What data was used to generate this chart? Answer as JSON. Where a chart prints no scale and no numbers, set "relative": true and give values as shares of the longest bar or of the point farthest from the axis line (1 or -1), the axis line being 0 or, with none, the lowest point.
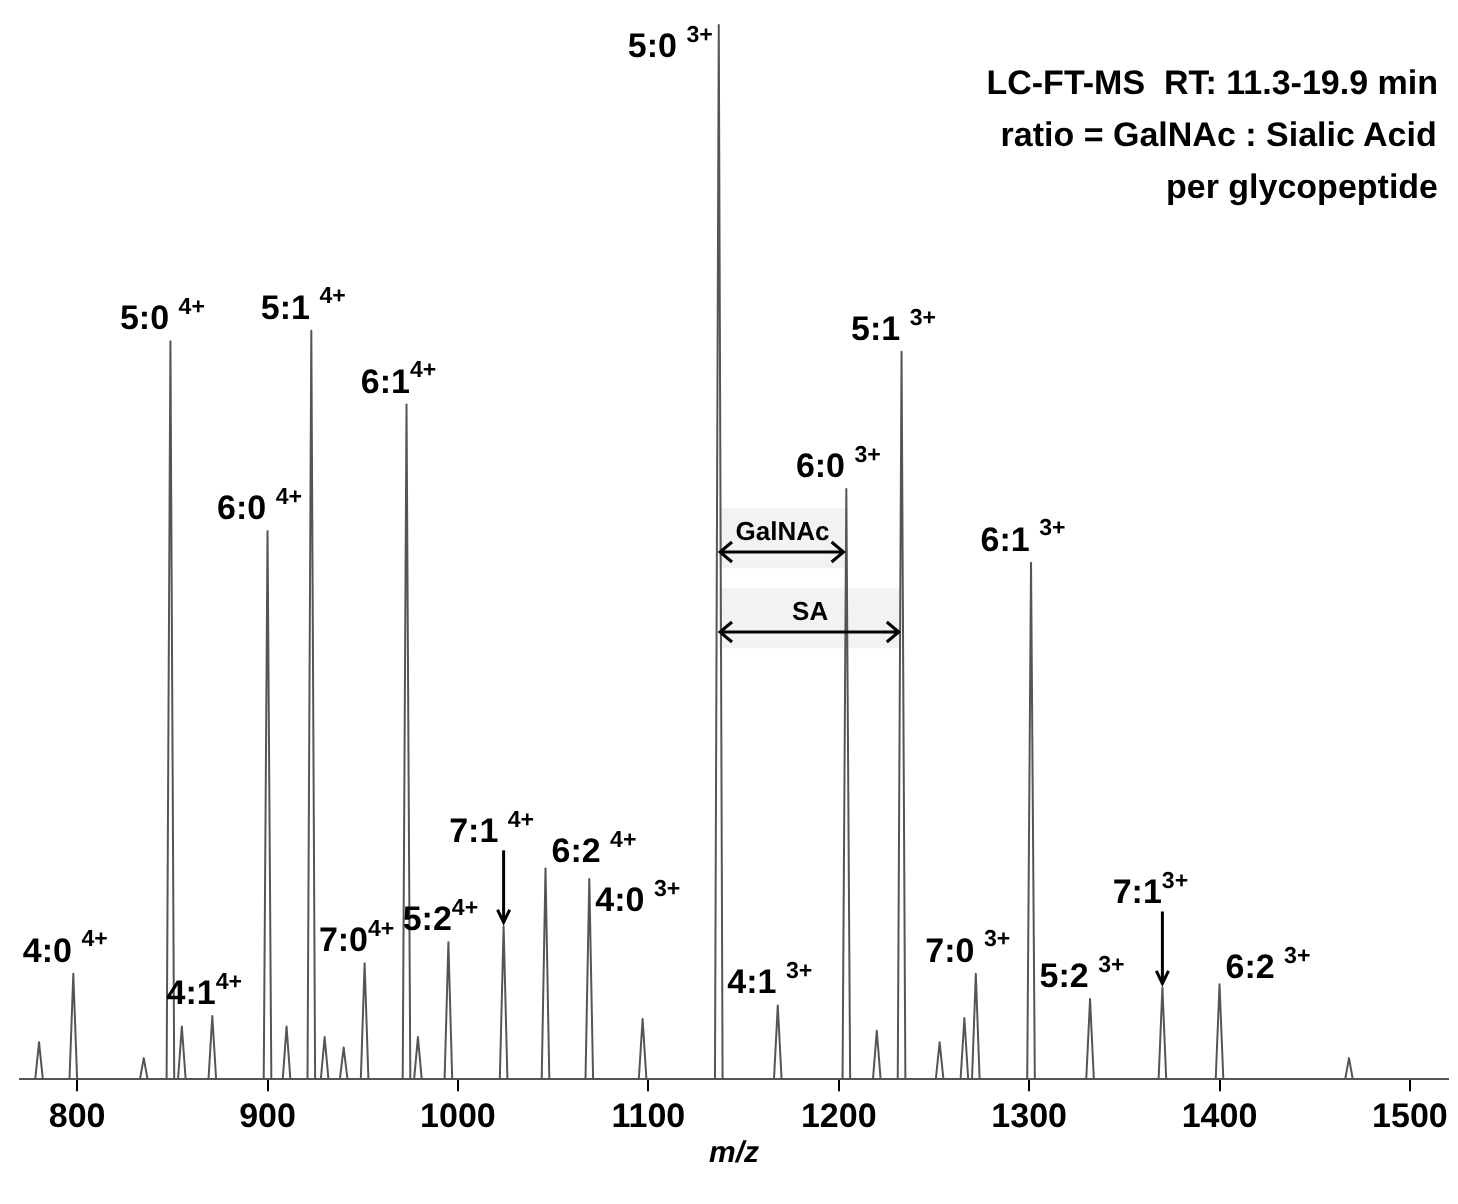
{
  "chart_data": {
    "type": "line",
    "relative": true,
    "xlabel": "m/z",
    "xlim": [
      770,
      1520
    ],
    "xticks": [
      800,
      900,
      1000,
      1100,
      1200,
      1300,
      1400,
      1500
    ],
    "grid": false,
    "legend": false,
    "marker": "none",
    "line_style": "solid",
    "series": [
      {
        "color": "#555555",
        "x": [
          770,
          778,
          780,
          782,
          796,
          798,
          800,
          833,
          835,
          837,
          847,
          849,
          851,
          853,
          855,
          857,
          869,
          871,
          873,
          898,
          900,
          902,
          908,
          910,
          912,
          921,
          923,
          925,
          928,
          930,
          932,
          938,
          940,
          942,
          949,
          951,
          953,
          971,
          973,
          975,
          977,
          979,
          981,
          993,
          995,
          997,
          1022,
          1024,
          1026,
          1044,
          1046,
          1048,
          1067,
          1069,
          1071,
          1095,
          1097,
          1099,
          1135,
          1137,
          1139,
          1166,
          1168,
          1170,
          1202,
          1204,
          1206,
          1218,
          1220,
          1222,
          1231,
          1233,
          1235,
          1251,
          1253,
          1255,
          1264,
          1266,
          1268,
          1270,
          1272,
          1274,
          1299,
          1301,
          1303,
          1330,
          1332,
          1334,
          1368,
          1370,
          1372,
          1398,
          1400,
          1402,
          1466,
          1468,
          1470,
          1520
        ],
        "values": [
          0,
          0,
          0.035,
          0,
          0,
          0.1,
          0,
          0,
          0.02,
          0,
          0,
          0.7,
          0,
          0,
          0.05,
          0,
          0,
          0.06,
          0,
          0,
          0.52,
          0,
          0,
          0.05,
          0,
          0,
          0.71,
          0,
          0,
          0.04,
          0,
          0,
          0.03,
          0,
          0,
          0.11,
          0,
          0,
          0.64,
          0,
          0,
          0.04,
          0,
          0,
          0.13,
          0,
          0,
          0.145,
          0,
          0,
          0.2,
          0,
          0,
          0.19,
          0,
          0,
          0.057,
          0,
          0,
          1,
          0,
          0,
          0.07,
          0,
          0,
          0.56,
          0,
          0,
          0.046,
          0,
          0,
          0.69,
          0,
          0,
          0.035,
          0,
          0,
          0.058,
          0,
          0,
          0.1,
          0,
          0,
          0.49,
          0,
          0,
          0.076,
          0,
          0,
          0.087,
          0,
          0,
          0.09,
          0,
          0,
          0.02,
          0,
          0
        ]
      }
    ],
    "annotations": [
      "LC-FT-MS  RT: 11.3-19.9 min",
      "ratio = GalNAc : Sialic Acid",
      "per glycopeptide",
      {
        "text": "4:0 $^{4+}$",
        "x": 798,
        "y": 0.1
      },
      {
        "text": "5:0 $^{4+}$",
        "x": 849,
        "y": 0.7
      },
      {
        "text": "4:1$^{4+}$",
        "x": 871,
        "y": 0.06
      },
      {
        "text": "6:0 $^{4+}$",
        "x": 900,
        "y": 0.52
      },
      {
        "text": "5:1 $^{4+}$",
        "x": 923,
        "y": 0.71
      },
      {
        "text": "7:0$^{4+}$",
        "x": 951,
        "y": 0.11
      },
      {
        "text": "6:1$^{4+}$",
        "x": 973,
        "y": 0.64
      },
      {
        "text": "5:2$^{4+}$",
        "x": 995,
        "y": 0.13
      },
      {
        "text": "7:1 $^{4+}$",
        "x": 1024,
        "y": 0.145
      },
      {
        "text": "6:2 $^{4+}$",
        "x": 1046,
        "y": 0.2
      },
      {
        "text": "4:0 $^{3+}$",
        "x": 1069,
        "y": 0.19
      },
      {
        "text": "5:0 $^{3+}$",
        "x": 1137,
        "y": 1
      },
      {
        "text": "4:1 $^{3+}$",
        "x": 1168,
        "y": 0.07
      },
      {
        "text": "6:0 $^{3+}$",
        "x": 1204,
        "y": 0.56
      },
      {
        "text": "5:1 $^{3+}$",
        "x": 1233,
        "y": 0.69
      },
      {
        "text": "7:0 $^{3+}$",
        "x": 1272,
        "y": 0.1
      },
      {
        "text": "6:1 $^{3+}$",
        "x": 1301,
        "y": 0.49
      },
      {
        "text": "5:2 $^{3+}$",
        "x": 1332,
        "y": 0.076
      },
      {
        "text": "7:1$^{3+}$",
        "x": 1370,
        "y": 0.087
      },
      {
        "text": "6:2 $^{3+}$",
        "x": 1400,
        "y": 0.09
      }
    ],
    "bands": [
      {
        "axis": "x",
        "from": 1137,
        "to": 1204,
        "label": "GalNAc"
      },
      {
        "axis": "x",
        "from": 1137,
        "to": 1233,
        "label": "SA"
      }
    ]
  }
}
